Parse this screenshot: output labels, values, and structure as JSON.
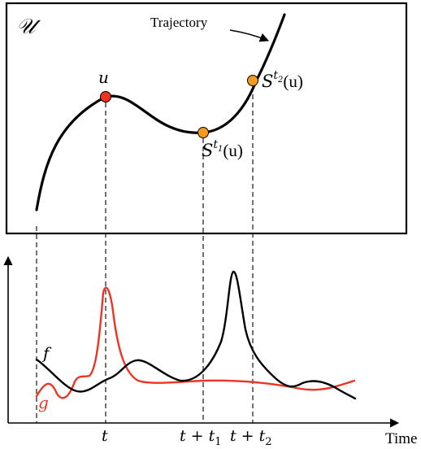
{
  "state_space": {
    "symbol": "𝒰",
    "trajectory_label": "Trajectory",
    "points": {
      "u": {
        "label": "u",
        "color": "#ee3322"
      },
      "s1": {
        "label_base": "S",
        "label_sup": "t",
        "label_sup_sub": "1",
        "label_arg": "(u)",
        "color": "#f59a1b"
      },
      "s2": {
        "label_base": "S",
        "label_sup": "t",
        "label_sup_sub": "2",
        "label_arg": "(u)",
        "color": "#f59a1b"
      }
    }
  },
  "time_plot": {
    "x_axis_label": "Time",
    "ticks": {
      "t": {
        "text": "t"
      },
      "t1": {
        "text": "t + t",
        "sub": "1"
      },
      "t2": {
        "text": "t + t",
        "sub": "2"
      }
    },
    "signals": {
      "f": {
        "label": "f",
        "color": "#000000"
      },
      "g": {
        "label": "g",
        "color": "#ee3322"
      }
    }
  }
}
